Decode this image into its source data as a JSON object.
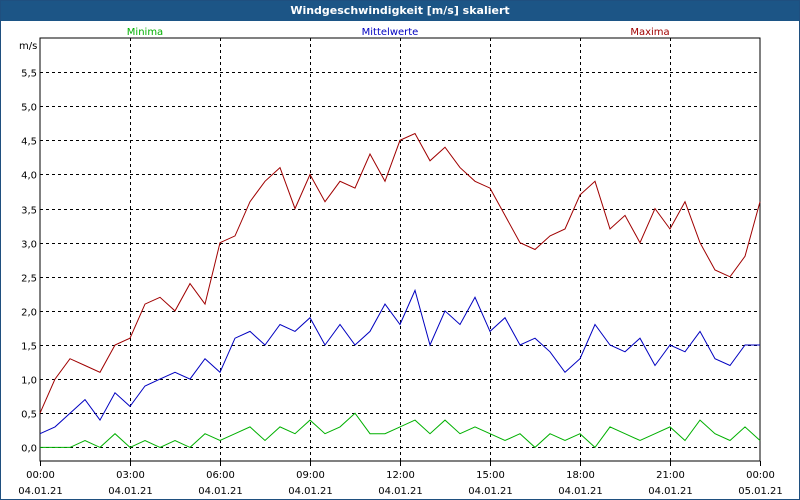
{
  "window": {
    "title": "Windgeschwindigkeit [m/s] skaliert"
  },
  "chart_data": {
    "type": "line",
    "title": "Windgeschwindigkeit [m/s] skaliert",
    "ylabel": "m/s",
    "xlabel": "",
    "xlim": [
      "04.01.21 00:00",
      "05.01.21 00:00"
    ],
    "ylim": [
      -0.2,
      6.0
    ],
    "y_ticks": [
      "0,0",
      "0,5",
      "1,0",
      "1,5",
      "2,0",
      "2,5",
      "3,0",
      "3,5",
      "4,0",
      "4,5",
      "5,0",
      "5,5"
    ],
    "y_tick_values": [
      0.0,
      0.5,
      1.0,
      1.5,
      2.0,
      2.5,
      3.0,
      3.5,
      4.0,
      4.5,
      5.0,
      5.5
    ],
    "x_ticks": [
      {
        "time": "00:00",
        "date": "04.01.21"
      },
      {
        "time": "03:00",
        "date": "04.01.21"
      },
      {
        "time": "06:00",
        "date": "04.01.21"
      },
      {
        "time": "09:00",
        "date": "04.01.21"
      },
      {
        "time": "12:00",
        "date": "04.01.21"
      },
      {
        "time": "15:00",
        "date": "04.01.21"
      },
      {
        "time": "18:00",
        "date": "04.01.21"
      },
      {
        "time": "21:00",
        "date": "04.01.21"
      },
      {
        "time": "00:00",
        "date": "05.01.21"
      }
    ],
    "grid": true,
    "legend_position": "top",
    "series": [
      {
        "name": "Minima",
        "color": "#00b000",
        "x": [
          0.0,
          0.5,
          1.0,
          1.5,
          2.0,
          2.5,
          3.0,
          3.5,
          4.0,
          4.5,
          5.0,
          5.5,
          6.0,
          6.5,
          7.0,
          7.5,
          8.0,
          8.5,
          9.0,
          9.5,
          10.0,
          10.5,
          11.0,
          11.5,
          12.0,
          12.5,
          13.0,
          13.5,
          14.0,
          14.5,
          15.0,
          15.5,
          16.0,
          16.5,
          17.0,
          17.5,
          18.0,
          18.5,
          19.0,
          19.5,
          20.0,
          20.5,
          21.0,
          21.5,
          22.0,
          22.5,
          23.0,
          23.5,
          24.0
        ],
        "values": [
          0.0,
          0.0,
          0.0,
          0.1,
          0.0,
          0.2,
          0.0,
          0.1,
          0.0,
          0.1,
          0.0,
          0.2,
          0.1,
          0.2,
          0.3,
          0.1,
          0.3,
          0.2,
          0.4,
          0.2,
          0.3,
          0.5,
          0.2,
          0.2,
          0.3,
          0.4,
          0.2,
          0.4,
          0.2,
          0.3,
          0.2,
          0.1,
          0.2,
          0.0,
          0.2,
          0.1,
          0.2,
          0.0,
          0.3,
          0.2,
          0.1,
          0.2,
          0.3,
          0.1,
          0.4,
          0.2,
          0.1,
          0.3,
          0.1
        ]
      },
      {
        "name": "Mittelwerte",
        "color": "#0000c0",
        "x": [
          0.0,
          0.5,
          1.0,
          1.5,
          2.0,
          2.5,
          3.0,
          3.5,
          4.0,
          4.5,
          5.0,
          5.5,
          6.0,
          6.5,
          7.0,
          7.5,
          8.0,
          8.5,
          9.0,
          9.5,
          10.0,
          10.5,
          11.0,
          11.5,
          12.0,
          12.5,
          13.0,
          13.5,
          14.0,
          14.5,
          15.0,
          15.5,
          16.0,
          16.5,
          17.0,
          17.5,
          18.0,
          18.5,
          19.0,
          19.5,
          20.0,
          20.5,
          21.0,
          21.5,
          22.0,
          22.5,
          23.0,
          23.5,
          24.0
        ],
        "values": [
          0.2,
          0.3,
          0.5,
          0.7,
          0.4,
          0.8,
          0.6,
          0.9,
          1.0,
          1.1,
          1.0,
          1.3,
          1.1,
          1.6,
          1.7,
          1.5,
          1.8,
          1.7,
          1.9,
          1.5,
          1.8,
          1.5,
          1.7,
          2.1,
          1.8,
          2.3,
          1.5,
          2.0,
          1.8,
          2.2,
          1.7,
          1.9,
          1.5,
          1.6,
          1.4,
          1.1,
          1.3,
          1.8,
          1.5,
          1.4,
          1.6,
          1.2,
          1.5,
          1.4,
          1.7,
          1.3,
          1.2,
          1.5,
          1.5
        ]
      },
      {
        "name": "Maxima",
        "color": "#a00000",
        "x": [
          0.0,
          0.5,
          1.0,
          1.5,
          2.0,
          2.5,
          3.0,
          3.5,
          4.0,
          4.5,
          5.0,
          5.5,
          6.0,
          6.5,
          7.0,
          7.5,
          8.0,
          8.5,
          9.0,
          9.5,
          10.0,
          10.5,
          11.0,
          11.5,
          12.0,
          12.5,
          13.0,
          13.5,
          14.0,
          14.5,
          15.0,
          15.5,
          16.0,
          16.5,
          17.0,
          17.5,
          18.0,
          18.5,
          19.0,
          19.5,
          20.0,
          20.5,
          21.0,
          21.5,
          22.0,
          22.5,
          23.0,
          23.5,
          24.0
        ],
        "values": [
          0.5,
          1.0,
          1.3,
          1.2,
          1.1,
          1.5,
          1.6,
          2.1,
          2.2,
          2.0,
          2.4,
          2.1,
          3.0,
          3.1,
          3.6,
          3.9,
          4.1,
          3.5,
          4.0,
          3.6,
          3.9,
          3.8,
          4.3,
          3.9,
          4.5,
          4.6,
          4.2,
          4.4,
          4.1,
          3.9,
          3.8,
          3.4,
          3.0,
          2.9,
          3.1,
          3.2,
          3.7,
          3.9,
          3.2,
          3.4,
          3.0,
          3.5,
          3.2,
          3.6,
          3.0,
          2.6,
          2.5,
          2.8,
          3.6
        ]
      }
    ]
  }
}
